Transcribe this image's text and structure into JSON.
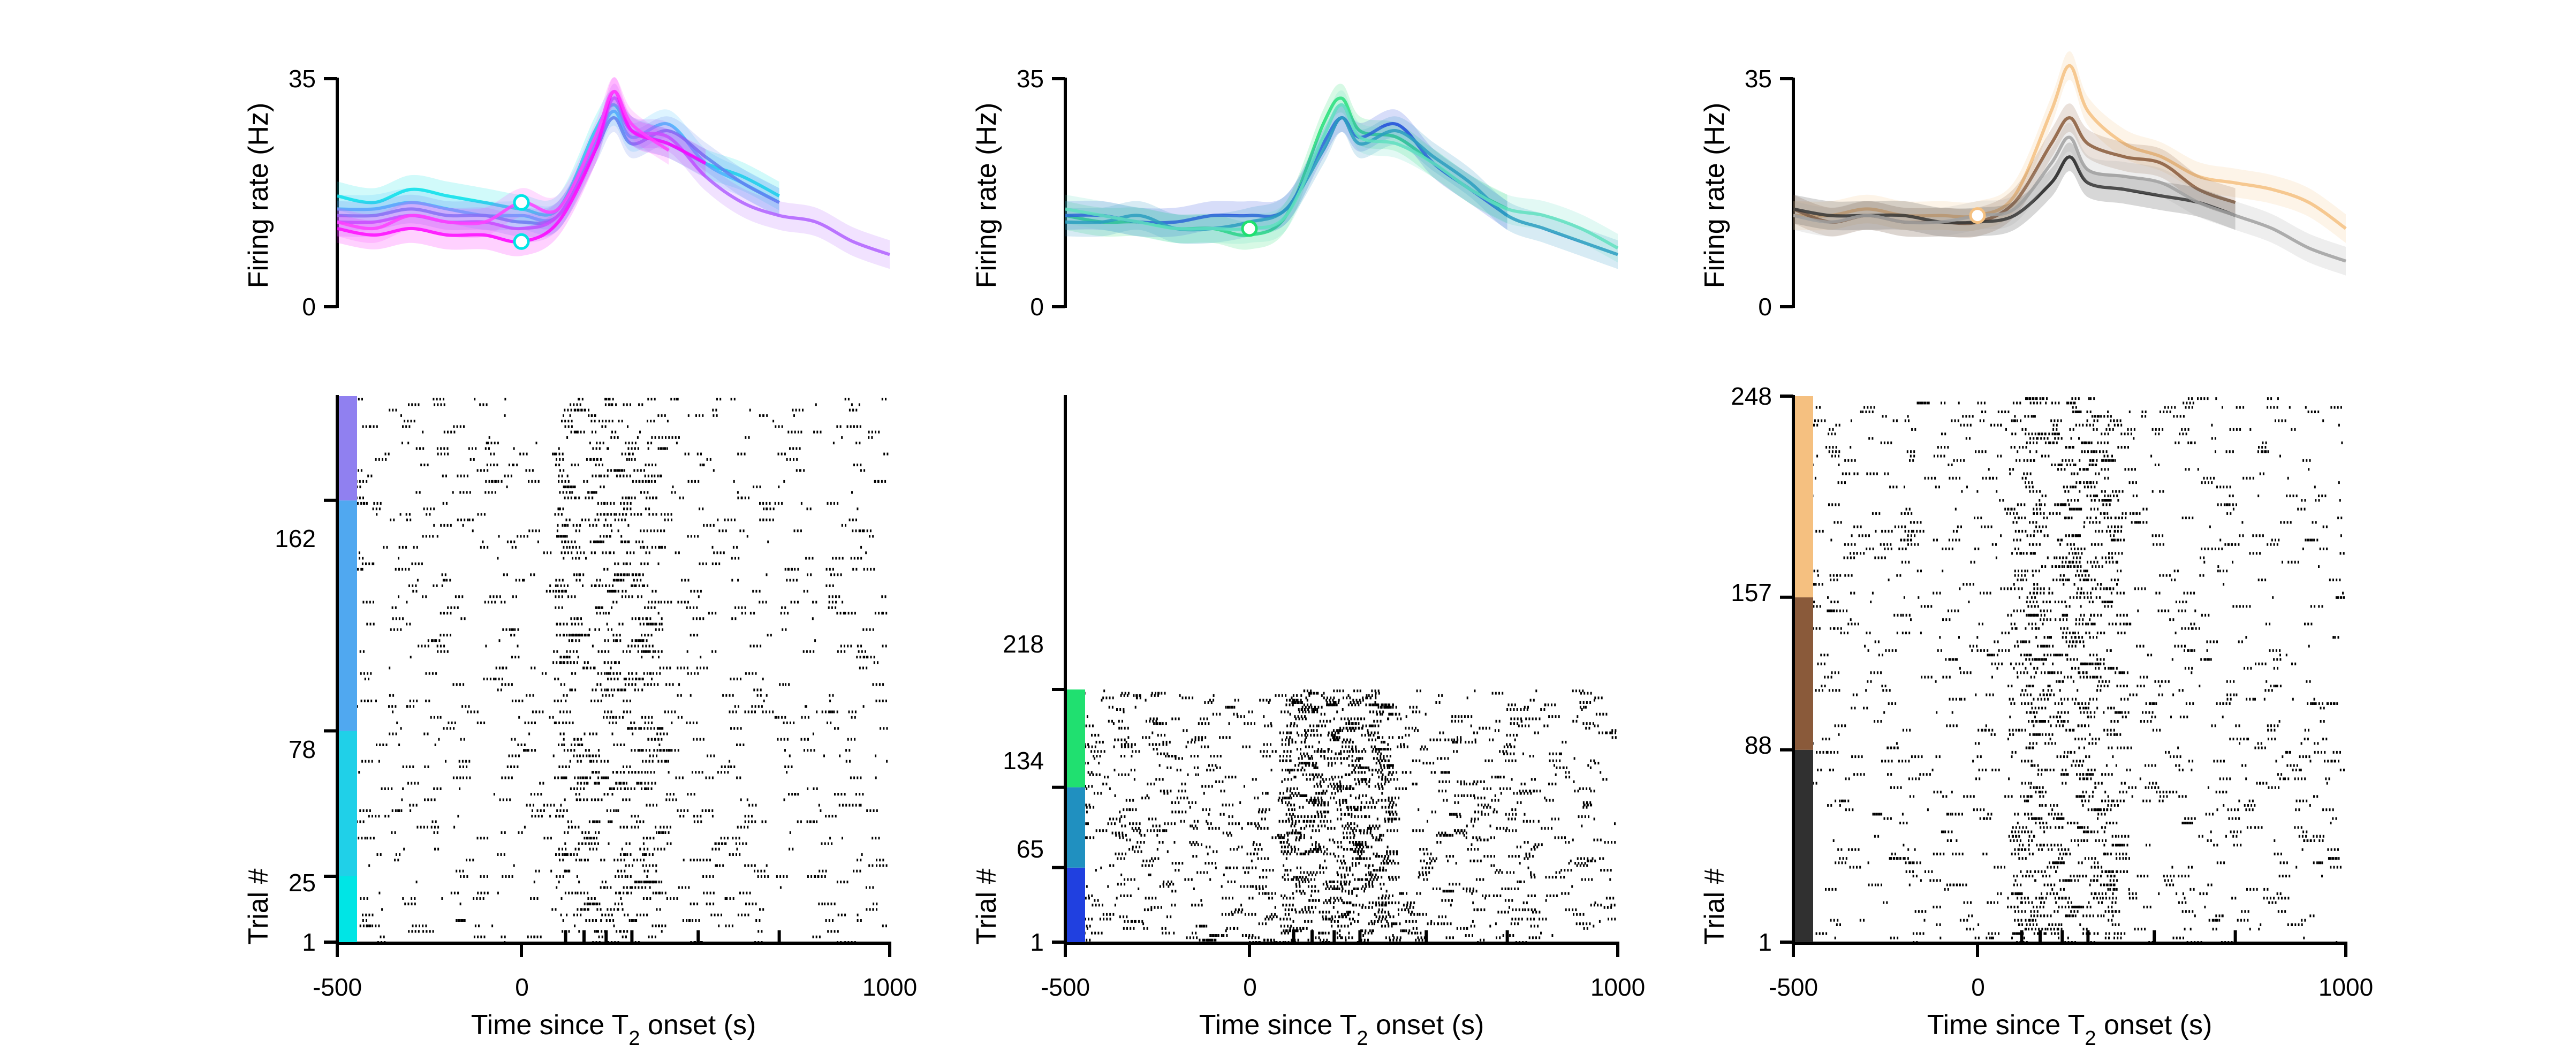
{
  "figure": {
    "panels": [
      {
        "id": "left",
        "psth": {
          "y_label": "Firing rate (Hz)",
          "y_ticks": [
            "0",
            "35"
          ],
          "ylim": [
            0,
            35
          ],
          "xlim": [
            -500,
            1000
          ]
        },
        "raster": {
          "y_label": "Trial #",
          "x_label_main": "Time since T",
          "x_label_sub": "2",
          "x_label_end": " onset (s)",
          "x_ticks": [
            "-500",
            "0",
            "1000"
          ],
          "y_ticks": [
            "1",
            "25",
            "78",
            "162"
          ],
          "xlim": [
            -500,
            1000
          ],
          "n_trials": 200,
          "minor_ticks": [
            120,
            170,
            230,
            300,
            480,
            700
          ]
        }
      },
      {
        "id": "middle",
        "psth": {
          "y_label": "Firing rate (Hz)",
          "y_ticks": [
            "0",
            "35"
          ],
          "ylim": [
            0,
            35
          ],
          "xlim": [
            -500,
            1000
          ]
        },
        "raster": {
          "y_label": "Trial #",
          "x_label_main": "Time since T",
          "x_label_sub": "2",
          "x_label_end": " onset (s)",
          "x_ticks": [
            "-500",
            "0",
            "1000"
          ],
          "y_ticks": [
            "1",
            "65",
            "134",
            "218"
          ],
          "xlim": [
            -500,
            1000
          ],
          "n_trials": 218,
          "minor_ticks": [
            120,
            170,
            230,
            300,
            480,
            700
          ]
        }
      },
      {
        "id": "right",
        "psth": {
          "y_label": "Firing rate (Hz)",
          "y_ticks": [
            "0",
            "35"
          ],
          "ylim": [
            0,
            35
          ],
          "xlim": [
            -500,
            1000
          ]
        },
        "raster": {
          "y_label": "Trial #",
          "x_label_main": "Time since T",
          "x_label_sub": "2",
          "x_label_end": " onset (s)",
          "x_ticks": [
            "-500",
            "0",
            "1000"
          ],
          "y_ticks": [
            "1",
            "88",
            "157",
            "248"
          ],
          "xlim": [
            -500,
            1000
          ],
          "n_trials": 248,
          "minor_ticks": [
            120,
            170,
            230,
            300,
            480,
            700
          ]
        }
      }
    ]
  },
  "chart_data": [
    {
      "type": "line",
      "panel": "left-psth",
      "ylabel": "Firing rate (Hz)",
      "xlim": [
        -500,
        1000
      ],
      "ylim": [
        0,
        35
      ],
      "series": [
        {
          "color": "#00e5e5",
          "x": [
            -500,
            -400,
            -300,
            -200,
            -100,
            0,
            100,
            200,
            250,
            300,
            400,
            500,
            600,
            700
          ],
          "y": [
            17,
            16,
            18,
            17,
            16,
            15,
            15,
            27,
            31,
            27,
            25,
            22,
            20,
            17
          ]
        },
        {
          "color": "#40c0ff",
          "x": [
            -500,
            -400,
            -300,
            -200,
            -100,
            0,
            100,
            200,
            250,
            300,
            400,
            500,
            600,
            700
          ],
          "y": [
            15,
            15,
            16,
            15,
            14,
            14,
            14,
            25,
            30,
            26,
            28,
            22,
            19,
            16
          ]
        },
        {
          "color": "#6080f0",
          "x": [
            -500,
            -400,
            -300,
            -200,
            -100,
            0,
            100,
            200,
            250,
            300,
            400,
            500,
            600,
            700
          ],
          "y": [
            14,
            14,
            15,
            14,
            14,
            13,
            14,
            24,
            29,
            25,
            27,
            23,
            19,
            16
          ]
        },
        {
          "color": "#b060ff",
          "x": [
            -500,
            -400,
            -300,
            -200,
            -100,
            0,
            100,
            200,
            250,
            300,
            400,
            500,
            600,
            700,
            800,
            900,
            1000
          ],
          "y": [
            13,
            13,
            14,
            13,
            13,
            12,
            14,
            24,
            32,
            27,
            26,
            20,
            16,
            14,
            13,
            10,
            8
          ]
        },
        {
          "color": "#ff00ff",
          "x": [
            -500,
            -400,
            -300,
            -200,
            -100,
            0,
            100,
            200,
            250,
            300,
            400,
            500
          ],
          "y": [
            12,
            11,
            12,
            11,
            11,
            10,
            13,
            24,
            33,
            27,
            25,
            22
          ]
        },
        {
          "color": "#ff40ff",
          "x": [
            -500,
            -400,
            -300,
            -200,
            -100,
            0,
            100,
            200,
            250,
            300,
            400
          ],
          "y": [
            13,
            12,
            14,
            13,
            13,
            16,
            15,
            26,
            33,
            28,
            24
          ]
        }
      ],
      "markers": [
        {
          "x": 0,
          "y": 16
        },
        {
          "x": 0,
          "y": 10
        }
      ]
    },
    {
      "type": "line",
      "panel": "middle-psth",
      "ylabel": "Firing rate (Hz)",
      "xlim": [
        -500,
        1000
      ],
      "ylim": [
        0,
        35
      ],
      "series": [
        {
          "color": "#20e070",
          "x": [
            -500,
            -400,
            -300,
            -200,
            -100,
            0,
            100,
            200,
            250,
            300,
            400,
            500,
            600,
            700
          ],
          "y": [
            14,
            13,
            13,
            12,
            12,
            11,
            14,
            28,
            32,
            27,
            26,
            22,
            18,
            15
          ]
        },
        {
          "color": "#2040e0",
          "x": [
            -500,
            -400,
            -300,
            -200,
            -100,
            0,
            100,
            200,
            250,
            300,
            400,
            500,
            600,
            700
          ],
          "y": [
            14,
            14,
            13,
            13,
            14,
            14,
            15,
            25,
            29,
            26,
            28,
            22,
            18,
            14
          ]
        },
        {
          "color": "#2090c0",
          "x": [
            -500,
            -400,
            -300,
            -200,
            -100,
            0,
            100,
            200,
            250,
            300,
            400,
            500,
            600,
            700,
            800,
            900,
            1000
          ],
          "y": [
            13,
            13,
            14,
            12,
            12,
            13,
            15,
            24,
            29,
            25,
            27,
            23,
            19,
            14,
            12,
            10,
            8
          ]
        },
        {
          "color": "#60e0c0",
          "x": [
            -500,
            -400,
            -300,
            -200,
            -100,
            0,
            100,
            200,
            250,
            300,
            400,
            500,
            600,
            700,
            800,
            900,
            1000
          ],
          "y": [
            15,
            14,
            13,
            12,
            12,
            12,
            14,
            26,
            31,
            26,
            25,
            22,
            18,
            15,
            14,
            12,
            9
          ]
        }
      ],
      "markers": [
        {
          "x": 0,
          "y": 12
        }
      ]
    },
    {
      "type": "line",
      "panel": "right-psth",
      "ylabel": "Firing rate (Hz)",
      "xlim": [
        -500,
        1000
      ],
      "ylim": [
        0,
        35
      ],
      "series": [
        {
          "color": "#f5c080",
          "x": [
            -500,
            -400,
            -300,
            -200,
            -100,
            0,
            100,
            200,
            250,
            300,
            400,
            500,
            600,
            700,
            800,
            900,
            1000
          ],
          "y": [
            14,
            14,
            15,
            14,
            14,
            14,
            17,
            30,
            37,
            30,
            25,
            23,
            20,
            19,
            18,
            16,
            12
          ]
        },
        {
          "color": "#8a5a3a",
          "x": [
            -500,
            -400,
            -300,
            -200,
            -100,
            0,
            100,
            200,
            250,
            300,
            400,
            500,
            600,
            700
          ],
          "y": [
            15,
            13,
            14,
            13,
            13,
            13,
            16,
            25,
            29,
            25,
            23,
            22,
            18,
            16
          ]
        },
        {
          "color": "#202020",
          "x": [
            -500,
            -400,
            -300,
            -200,
            -100,
            0,
            100,
            200,
            250,
            300,
            400,
            500,
            600,
            700
          ],
          "y": [
            15,
            14,
            14,
            14,
            13,
            13,
            14,
            19,
            23,
            19,
            18,
            17,
            16,
            14
          ]
        },
        {
          "color": "#a0a0a0",
          "x": [
            -500,
            -400,
            -300,
            -200,
            -100,
            0,
            100,
            200,
            250,
            300,
            400,
            500,
            600,
            700,
            800,
            900,
            1000
          ],
          "y": [
            14,
            13,
            14,
            13,
            13,
            14,
            15,
            22,
            26,
            21,
            20,
            19,
            16,
            14,
            12,
            9,
            7
          ]
        }
      ],
      "markers": [
        {
          "x": 0,
          "y": 14
        }
      ]
    },
    {
      "type": "scatter",
      "panel": "left-raster",
      "xlabel": "Time since T2 onset (s)",
      "ylabel": "Trial #",
      "xlim": [
        -500,
        1000
      ],
      "trials": 200,
      "condition_bar": [
        {
          "from": 1,
          "to": 25,
          "color": "#00e5e5"
        },
        {
          "from": 25,
          "to": 78,
          "color": "#20d0e8"
        },
        {
          "from": 78,
          "to": 162,
          "color": "#50a8f0"
        },
        {
          "from": 162,
          "to": 200,
          "color": "#9080f0"
        }
      ]
    },
    {
      "type": "scatter",
      "panel": "middle-raster",
      "xlabel": "Time since T2 onset (s)",
      "ylabel": "Trial #",
      "xlim": [
        -500,
        1000
      ],
      "trials": 218,
      "condition_bar": [
        {
          "from": 1,
          "to": 65,
          "color": "#2040e0"
        },
        {
          "from": 65,
          "to": 134,
          "color": "#2090c0"
        },
        {
          "from": 134,
          "to": 218,
          "color": "#20e070"
        }
      ]
    },
    {
      "type": "scatter",
      "panel": "right-raster",
      "xlabel": "Time since T2 onset (s)",
      "ylabel": "Trial #",
      "xlim": [
        -500,
        1000
      ],
      "trials": 248,
      "condition_bar": [
        {
          "from": 1,
          "to": 88,
          "color": "#303030"
        },
        {
          "from": 88,
          "to": 157,
          "color": "#8a5a3a"
        },
        {
          "from": 157,
          "to": 248,
          "color": "#f5c080"
        }
      ]
    }
  ]
}
